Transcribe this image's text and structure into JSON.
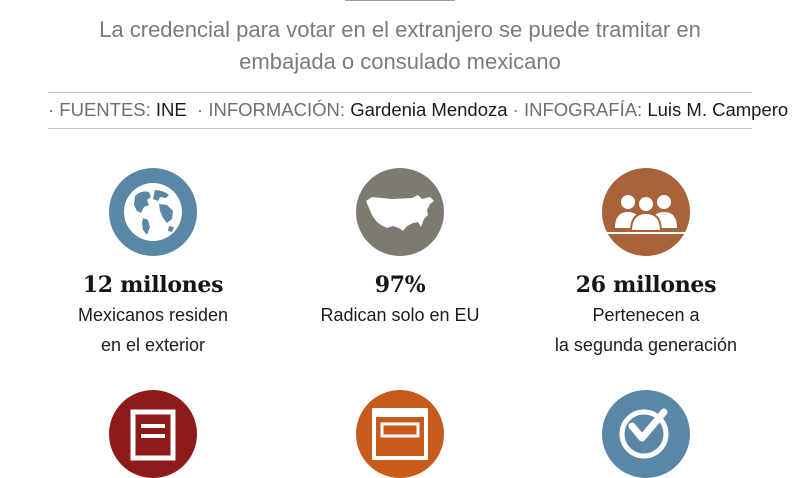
{
  "header": {
    "subtitle_line1": "La credencial para votar en el extranjero se puede tramitar en",
    "subtitle_line2": "embajada o consulado mexicano"
  },
  "credits": {
    "sources_label": "· FUENTES: ",
    "sources_value": "INE",
    "info_label": "  · INFORMACIÓN: ",
    "info_value": "Gardenia Mendoza",
    "graphics_label": " · INFOGRAFÍA: ",
    "graphics_value": "Luis M. Campero"
  },
  "stats": [
    {
      "icon": "globe-icon",
      "color": "#5b87a6",
      "value": "12 millones",
      "desc_line1": "Mexicanos residen",
      "desc_line2": "en el exterior"
    },
    {
      "icon": "usa-map-icon",
      "color": "#7e7a72",
      "value": "97%",
      "desc_line1": "Radican solo en EU",
      "desc_line2": ""
    },
    {
      "icon": "people-group-icon",
      "color": "#a8633a",
      "value": "26 millones",
      "desc_line1": "Pertenecen a",
      "desc_line2": "la segunda generación"
    }
  ],
  "bottom_icons": [
    {
      "icon": "document-icon",
      "color": "#8e1a1a"
    },
    {
      "icon": "form-icon",
      "color": "#c85a1c"
    },
    {
      "icon": "checkmark-icon",
      "color": "#5b87a6"
    }
  ]
}
